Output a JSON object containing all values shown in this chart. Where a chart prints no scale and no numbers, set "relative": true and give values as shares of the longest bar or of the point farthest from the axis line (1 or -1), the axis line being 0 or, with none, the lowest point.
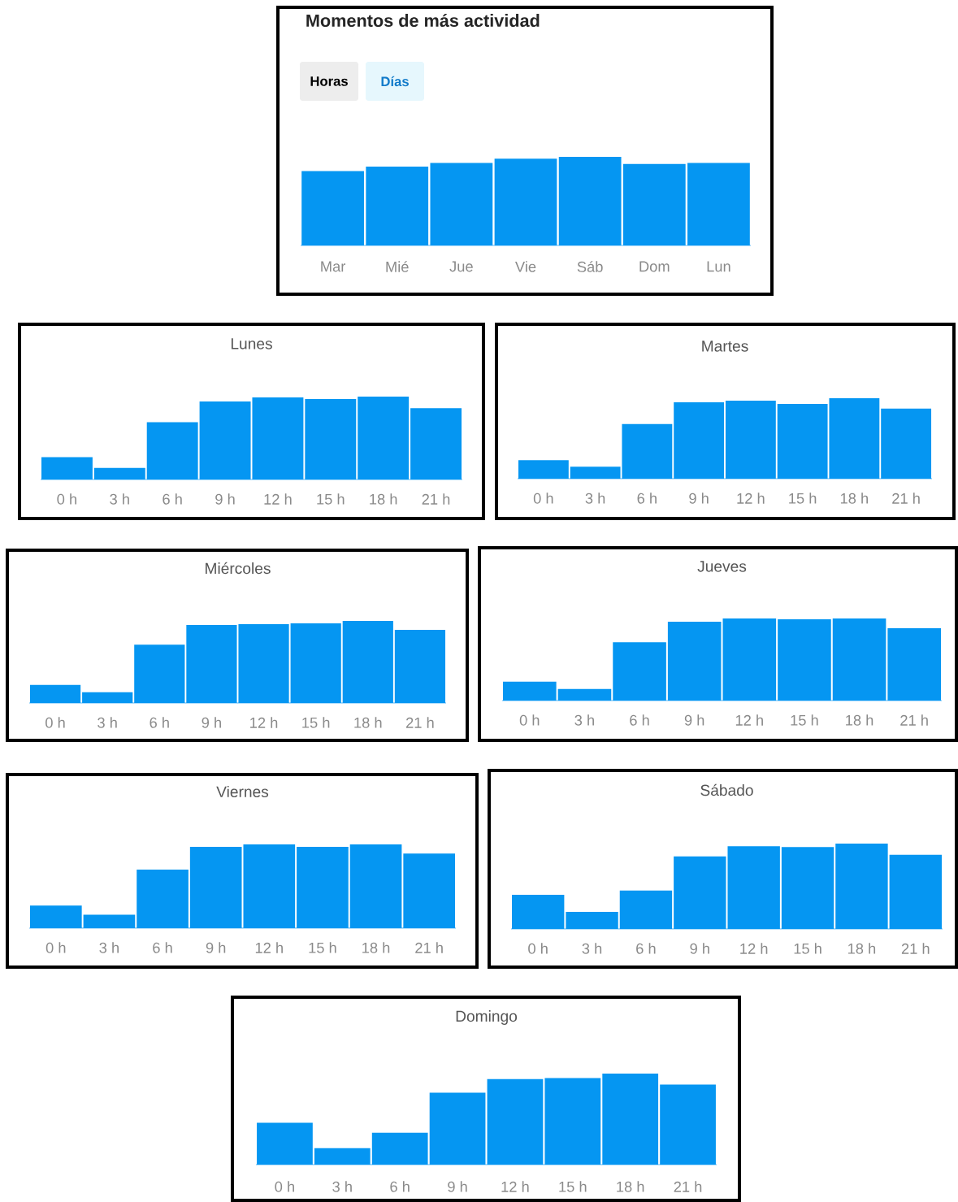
{
  "chart_data": [
    {
      "type": "bar",
      "title": "Momentos de más actividad",
      "annotations": [
        "Horas",
        "Días"
      ],
      "categories": [
        "Mar",
        "Mié",
        "Jue",
        "Vie",
        "Sáb",
        "Dom",
        "Lun"
      ],
      "values": [
        0.84,
        0.89,
        0.93,
        0.98,
        1,
        0.92,
        0.93
      ],
      "color": "#0596f2",
      "relative": true
    },
    {
      "type": "bar",
      "title": "Lunes",
      "categories": [
        "0 h",
        "3 h",
        "6 h",
        "9 h",
        "12 h",
        "15 h",
        "18 h",
        "21 h"
      ],
      "values": [
        0.27,
        0.14,
        0.69,
        0.94,
        0.99,
        0.97,
        1,
        0.86
      ],
      "color": "#0596f2",
      "relative": true
    },
    {
      "type": "bar",
      "title": "Martes",
      "categories": [
        "0 h",
        "3 h",
        "6 h",
        "9 h",
        "12 h",
        "15 h",
        "18 h",
        "21 h"
      ],
      "values": [
        0.23,
        0.15,
        0.68,
        0.95,
        0.97,
        0.93,
        1,
        0.87
      ],
      "color": "#0596f2",
      "relative": true
    },
    {
      "type": "bar",
      "title": "Miércoles",
      "categories": [
        "0 h",
        "3 h",
        "6 h",
        "9 h",
        "12 h",
        "15 h",
        "18 h",
        "21 h"
      ],
      "values": [
        0.22,
        0.13,
        0.71,
        0.95,
        0.96,
        0.97,
        1,
        0.89
      ],
      "color": "#0596f2",
      "relative": true
    },
    {
      "type": "bar",
      "title": "Jueves",
      "categories": [
        "0 h",
        "3 h",
        "6 h",
        "9 h",
        "12 h",
        "15 h",
        "18 h",
        "21 h"
      ],
      "values": [
        0.23,
        0.14,
        0.71,
        0.96,
        1,
        0.99,
        1,
        0.88
      ],
      "color": "#0596f2",
      "relative": true
    },
    {
      "type": "bar",
      "title": "Viernes",
      "categories": [
        "0 h",
        "3 h",
        "6 h",
        "9 h",
        "12 h",
        "15 h",
        "18 h",
        "21 h"
      ],
      "values": [
        0.27,
        0.16,
        0.7,
        0.97,
        1,
        0.97,
        1,
        0.89
      ],
      "color": "#0596f2",
      "relative": true
    },
    {
      "type": "bar",
      "title": "Sábado",
      "categories": [
        "0 h",
        "3 h",
        "6 h",
        "9 h",
        "12 h",
        "15 h",
        "18 h",
        "21 h"
      ],
      "values": [
        0.4,
        0.2,
        0.45,
        0.85,
        0.97,
        0.96,
        1,
        0.87
      ],
      "color": "#0596f2",
      "relative": true
    },
    {
      "type": "bar",
      "title": "Domingo",
      "categories": [
        "0 h",
        "3 h",
        "6 h",
        "9 h",
        "12 h",
        "15 h",
        "18 h",
        "21 h"
      ],
      "values": [
        0.46,
        0.18,
        0.35,
        0.79,
        0.94,
        0.95,
        1,
        0.88
      ],
      "color": "#0596f2",
      "relative": true
    }
  ]
}
